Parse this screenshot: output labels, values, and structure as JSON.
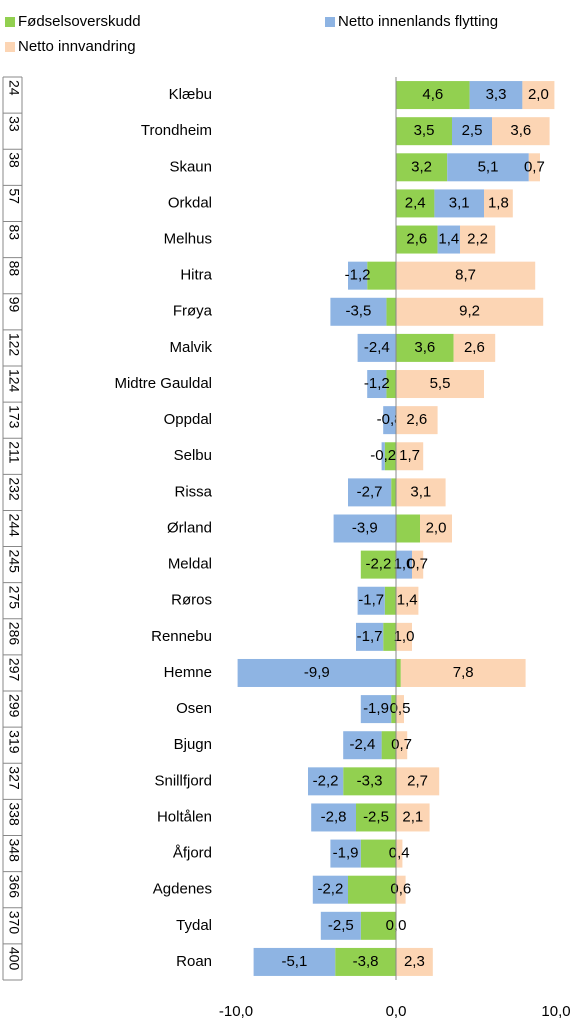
{
  "chart_data": {
    "type": "bar",
    "orientation": "horizontal",
    "stacked": true,
    "categories": [
      "Klæbu",
      "Trondheim",
      "Skaun",
      "Orkdal",
      "Melhus",
      "Hitra",
      "Frøya",
      "Malvik",
      "Midtre Gauldal",
      "Oppdal",
      "Selbu",
      "Rissa",
      "Ørland",
      "Meldal",
      "Røros",
      "Rennebu",
      "Hemne",
      "Osen",
      "Bjugn",
      "Snillfjord",
      "Holtålen",
      "Åfjord",
      "Agdenes",
      "Tydal",
      "Roan"
    ],
    "ranks": [
      24,
      33,
      38,
      57,
      83,
      88,
      99,
      122,
      124,
      173,
      211,
      232,
      244,
      245,
      275,
      286,
      297,
      299,
      319,
      327,
      338,
      348,
      366,
      370,
      400
    ],
    "series": [
      {
        "name": "Fødselsoverskudd",
        "color": "#92d050",
        "values": [
          4.6,
          3.5,
          3.2,
          2.4,
          2.6,
          -1.8,
          -0.6,
          3.6,
          -0.6,
          null,
          -0.7,
          -0.3,
          1.5,
          -2.2,
          -0.7,
          -0.8,
          0.3,
          -0.3,
          -0.9,
          -3.3,
          -2.5,
          -2.2,
          -3.0,
          -2.2,
          -3.8
        ],
        "value_labels": [
          "4,6",
          "3,5",
          "3,2",
          "2,4",
          "2,6",
          null,
          null,
          "3,6",
          null,
          null,
          null,
          null,
          null,
          "-2,2",
          null,
          null,
          null,
          null,
          null,
          "-3,3",
          "-2,5",
          null,
          null,
          null,
          "-3,8"
        ]
      },
      {
        "name": "Netto innenlands flytting",
        "color": "#8eb4e3",
        "values": [
          3.3,
          2.5,
          5.1,
          3.1,
          1.4,
          -1.2,
          -3.5,
          -2.4,
          -1.2,
          -0.8,
          -0.2,
          -2.7,
          -3.9,
          1.0,
          -1.7,
          -1.7,
          -9.9,
          -1.9,
          -2.4,
          -2.2,
          -2.8,
          -1.9,
          -2.2,
          -2.5,
          -5.1
        ],
        "value_labels": [
          "3,3",
          "2,5",
          "5,1",
          "3,1",
          "1,4",
          "-1,2",
          "-3,5",
          "-2,4",
          "-1,2",
          "-0,8",
          "-0,2",
          "-2,7",
          "-3,9",
          "1,0",
          "-1,7",
          "-1,7",
          "-9,9",
          "-1,9",
          "-2,4",
          "-2,2",
          "-2,8",
          "-1,9",
          "-2,2",
          "-2,5",
          "-5,1"
        ]
      },
      {
        "name": "Netto innvandring",
        "color": "#fcd5b4",
        "values": [
          2.0,
          3.6,
          0.7,
          1.8,
          2.2,
          8.7,
          9.2,
          2.6,
          5.5,
          2.6,
          1.7,
          3.1,
          2.0,
          0.7,
          1.4,
          1.0,
          7.8,
          0.5,
          0.7,
          2.7,
          2.1,
          0.4,
          0.6,
          0.0,
          2.3
        ],
        "value_labels": [
          "2,0",
          "3,6",
          "0,7",
          "1,8",
          "2,2",
          "8,7",
          "9,2",
          "2,6",
          "5,5",
          "2,6",
          "1,7",
          "3,1",
          "2,0",
          "0,7",
          "1,4",
          "1,0",
          "7,8",
          "0,5",
          "0,7",
          "2,7",
          "2,1",
          "0,4",
          "0,6",
          "0,0",
          "2,3"
        ]
      }
    ],
    "xlim": [
      -10,
      10
    ],
    "xticks": [
      {
        "value": -10,
        "label": "-10,0"
      },
      {
        "value": 0,
        "label": "0,0"
      },
      {
        "value": 10,
        "label": "10,0"
      }
    ],
    "legend": "top"
  }
}
